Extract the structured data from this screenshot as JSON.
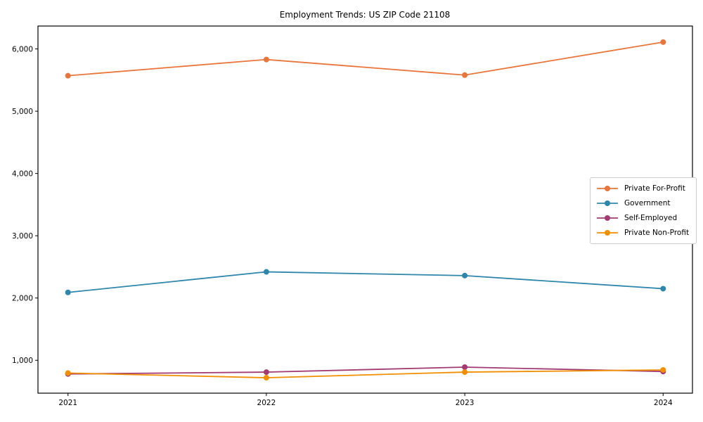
{
  "chart_data": {
    "type": "line",
    "title": "Employment Trends: US ZIP Code 21108",
    "xlabel": "",
    "ylabel": "",
    "categories": [
      "2021",
      "2022",
      "2023",
      "2024"
    ],
    "x_values": [
      2021,
      2022,
      2023,
      2024
    ],
    "series": [
      {
        "name": "Private For-Profit",
        "color": "#E8763C",
        "values": [
          5570,
          5830,
          5580,
          6110
        ]
      },
      {
        "name": "Government",
        "color": "#2E86AB",
        "values": [
          2090,
          2420,
          2360,
          2150
        ]
      },
      {
        "name": "Self-Employed",
        "color": "#A23B72",
        "values": [
          780,
          810,
          890,
          820
        ]
      },
      {
        "name": "Private Non-Profit",
        "color": "#F18F01",
        "values": [
          795,
          720,
          810,
          845
        ]
      }
    ],
    "y_ticks": {
      "values": [
        1000,
        2000,
        3000,
        4000,
        5000,
        6000
      ],
      "labels": [
        "1,000",
        "2,000",
        "3,000",
        "4,000",
        "5,000",
        "6,000"
      ]
    },
    "ylim": [
      472,
      6368
    ],
    "grid": false,
    "legend_position": "center right",
    "marker": "circle",
    "background_color": "#ffffff",
    "frame_color": "#000000"
  }
}
